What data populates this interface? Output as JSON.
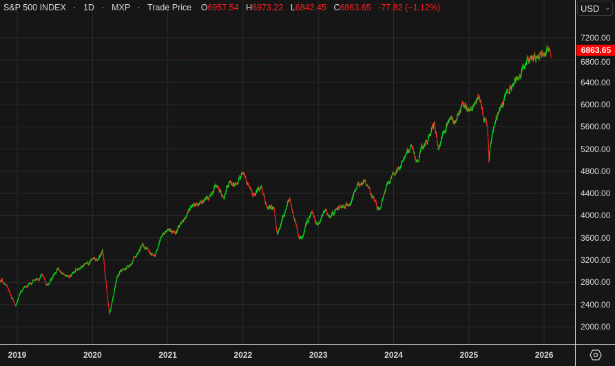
{
  "header": {
    "symbol": "S&P 500 INDEX",
    "interval": "1D",
    "exchange": "MXP",
    "price_type": "Trade Price",
    "sep": "·",
    "open_label": "O",
    "open": "6957.54",
    "high_label": "H",
    "high": "6973.22",
    "low_label": "L",
    "low": "6842.45",
    "close_label": "C",
    "close": "6863.65",
    "change": "-77.82",
    "change_pct": "(−1.12%)"
  },
  "currency_button": {
    "label": "USD",
    "icon": "chevron-down-icon"
  },
  "last_price_label": "6863.65",
  "settings_icon": "settings-hexagon-icon",
  "colors": {
    "background": "#161616",
    "up": "#00e61e",
    "down": "#ff2323",
    "grid": "#2b2b2b",
    "last_price_bg": "#ff0000"
  },
  "chart_data": {
    "type": "candlestick",
    "title": "S&P 500 INDEX · 1D · MXP · Trade Price",
    "ylim": [
      1700,
      7400
    ],
    "y_ticks": [
      "2000.00",
      "2400.00",
      "2800.00",
      "3200.00",
      "3600.00",
      "4000.00",
      "4400.00",
      "4800.00",
      "5200.00",
      "5600.00",
      "6000.00",
      "6400.00",
      "6800.00",
      "7200.00"
    ],
    "x_ticks": [
      "2019",
      "2020",
      "2021",
      "2022",
      "2023",
      "2024",
      "2025",
      "2026"
    ],
    "grid": true,
    "approx_closes": [
      [
        "2018-10-01",
        2880
      ],
      [
        "2018-11-15",
        2720
      ],
      [
        "2018-12-24",
        2380
      ],
      [
        "2019-01-31",
        2704
      ],
      [
        "2019-02-28",
        2784
      ],
      [
        "2019-03-29",
        2834
      ],
      [
        "2019-04-30",
        2946
      ],
      [
        "2019-05-31",
        2752
      ],
      [
        "2019-06-28",
        2942
      ],
      [
        "2019-07-31",
        2980
      ],
      [
        "2019-08-30",
        2926
      ],
      [
        "2019-09-30",
        2977
      ],
      [
        "2019-10-31",
        3038
      ],
      [
        "2019-11-29",
        3141
      ],
      [
        "2019-12-31",
        3231
      ],
      [
        "2020-01-31",
        3226
      ],
      [
        "2020-02-19",
        3390
      ],
      [
        "2020-03-23",
        2237
      ],
      [
        "2020-04-30",
        2912
      ],
      [
        "2020-05-29",
        3044
      ],
      [
        "2020-06-30",
        3100
      ],
      [
        "2020-07-31",
        3271
      ],
      [
        "2020-08-31",
        3500
      ],
      [
        "2020-09-30",
        3363
      ],
      [
        "2020-10-30",
        3270
      ],
      [
        "2020-11-30",
        3622
      ],
      [
        "2020-12-31",
        3756
      ],
      [
        "2021-01-29",
        3714
      ],
      [
        "2021-02-26",
        3811
      ],
      [
        "2021-03-31",
        3973
      ],
      [
        "2021-04-30",
        4181
      ],
      [
        "2021-05-28",
        4204
      ],
      [
        "2021-06-30",
        4298
      ],
      [
        "2021-07-30",
        4395
      ],
      [
        "2021-08-31",
        4523
      ],
      [
        "2021-09-30",
        4308
      ],
      [
        "2021-10-29",
        4605
      ],
      [
        "2021-11-30",
        4567
      ],
      [
        "2021-12-31",
        4766
      ],
      [
        "2022-01-31",
        4516
      ],
      [
        "2022-02-28",
        4374
      ],
      [
        "2022-03-31",
        4530
      ],
      [
        "2022-04-29",
        4132
      ],
      [
        "2022-05-31",
        4132
      ],
      [
        "2022-06-16",
        3666
      ],
      [
        "2022-07-29",
        4130
      ],
      [
        "2022-08-16",
        4305
      ],
      [
        "2022-09-30",
        3586
      ],
      [
        "2022-10-12",
        3577
      ],
      [
        "2022-11-30",
        4080
      ],
      [
        "2022-12-30",
        3840
      ],
      [
        "2023-01-31",
        4077
      ],
      [
        "2023-02-28",
        3970
      ],
      [
        "2023-03-31",
        4109
      ],
      [
        "2023-04-28",
        4169
      ],
      [
        "2023-05-31",
        4180
      ],
      [
        "2023-06-30",
        4450
      ],
      [
        "2023-07-31",
        4589
      ],
      [
        "2023-08-31",
        4508
      ],
      [
        "2023-09-29",
        4288
      ],
      [
        "2023-10-27",
        4117
      ],
      [
        "2023-11-30",
        4568
      ],
      [
        "2023-12-29",
        4770
      ],
      [
        "2024-01-31",
        4846
      ],
      [
        "2024-02-29",
        5096
      ],
      [
        "2024-03-28",
        5254
      ],
      [
        "2024-04-19",
        4967
      ],
      [
        "2024-05-31",
        5278
      ],
      [
        "2024-06-28",
        5460
      ],
      [
        "2024-07-16",
        5667
      ],
      [
        "2024-08-05",
        5186
      ],
      [
        "2024-09-30",
        5762
      ],
      [
        "2024-10-31",
        5705
      ],
      [
        "2024-11-29",
        6032
      ],
      [
        "2024-12-31",
        5882
      ],
      [
        "2025-01-31",
        6040
      ],
      [
        "2025-02-19",
        6144
      ],
      [
        "2025-03-31",
        5612
      ],
      [
        "2025-04-08",
        4982
      ],
      [
        "2025-04-30",
        5569
      ],
      [
        "2025-05-30",
        5912
      ],
      [
        "2025-06-30",
        6205
      ],
      [
        "2025-07-31",
        6339
      ],
      [
        "2025-08-29",
        6460
      ],
      [
        "2025-09-30",
        6688
      ],
      [
        "2025-10-31",
        6840
      ],
      [
        "2025-11-28",
        6849
      ],
      [
        "2025-12-31",
        6900
      ],
      [
        "2026-01-28",
        6978
      ],
      [
        "2026-02-03",
        6863.65
      ]
    ]
  }
}
